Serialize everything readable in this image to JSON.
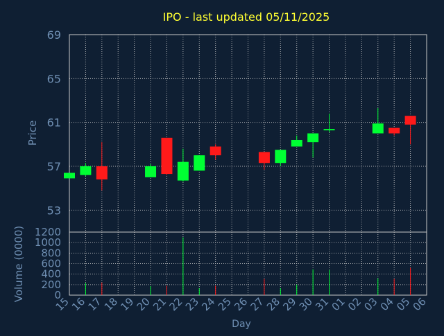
{
  "theme": {
    "background": "#0f1f33",
    "axis_text": "#6f8fb3",
    "title_color": "#ffff33",
    "grid": "#c8c8c8",
    "up_color": "#00ff33",
    "down_color": "#ff1a1a",
    "frame": "#c8c8c8"
  },
  "chart_data": [
    {
      "type": "candlestick",
      "title": "IPO - last updated 05/11/2025",
      "ylabel": "Price",
      "ylim": [
        51,
        69
      ],
      "yticks": [
        53,
        57,
        61,
        65,
        69
      ],
      "grid": true,
      "categories": [
        "15",
        "16",
        "17",
        "18",
        "19",
        "20",
        "21",
        "22",
        "23",
        "24",
        "25",
        "26",
        "27",
        "28",
        "29",
        "30",
        "31",
        "01",
        "02",
        "03",
        "04",
        "05",
        "06"
      ],
      "candles": [
        {
          "x": "15",
          "open": 55.9,
          "close": 56.4,
          "high": 56.4,
          "low": 55.9
        },
        {
          "x": "16",
          "open": 56.2,
          "close": 57.0,
          "high": 57.3,
          "low": 56.1
        },
        {
          "x": "17",
          "open": 57.0,
          "close": 55.8,
          "high": 59.2,
          "low": 54.8
        },
        {
          "x": "20",
          "open": 56.0,
          "close": 57.0,
          "high": 57.2,
          "low": 56.0
        },
        {
          "x": "21",
          "open": 59.6,
          "close": 56.3,
          "high": 59.6,
          "low": 56.2
        },
        {
          "x": "22",
          "open": 55.7,
          "close": 57.4,
          "high": 58.6,
          "low": 55.6
        },
        {
          "x": "23",
          "open": 56.6,
          "close": 58.0,
          "high": 58.0,
          "low": 56.6
        },
        {
          "x": "24",
          "open": 58.8,
          "close": 58.0,
          "high": 59.0,
          "low": 57.6
        },
        {
          "x": "27",
          "open": 58.3,
          "close": 57.3,
          "high": 58.3,
          "low": 56.7
        },
        {
          "x": "28",
          "open": 57.3,
          "close": 58.5,
          "high": 58.5,
          "low": 57.0
        },
        {
          "x": "29",
          "open": 58.8,
          "close": 59.4,
          "high": 59.8,
          "low": 58.8
        },
        {
          "x": "30",
          "open": 59.2,
          "close": 60.0,
          "high": 60.0,
          "low": 57.8
        },
        {
          "x": "31",
          "open": 60.3,
          "close": 60.4,
          "high": 61.8,
          "low": 60.1
        },
        {
          "x": "03",
          "open": 60.0,
          "close": 60.9,
          "high": 62.3,
          "low": 60.0
        },
        {
          "x": "04",
          "open": 60.5,
          "close": 60.0,
          "high": 60.5,
          "low": 59.8
        },
        {
          "x": "05",
          "open": 61.6,
          "close": 60.8,
          "high": 61.6,
          "low": 59.0
        }
      ]
    },
    {
      "type": "bar",
      "ylabel": "Volume (0000)",
      "xlabel": "Day",
      "ylim": [
        0,
        1200
      ],
      "yticks": [
        0,
        200,
        400,
        600,
        800,
        1000,
        1200
      ],
      "grid": true,
      "volumes": [
        {
          "x": "15",
          "value": 0,
          "up": true
        },
        {
          "x": "16",
          "value": 230,
          "up": true
        },
        {
          "x": "17",
          "value": 240,
          "up": false
        },
        {
          "x": "20",
          "value": 170,
          "up": true
        },
        {
          "x": "21",
          "value": 180,
          "up": false
        },
        {
          "x": "22",
          "value": 1100,
          "up": true
        },
        {
          "x": "23",
          "value": 130,
          "up": true
        },
        {
          "x": "24",
          "value": 180,
          "up": false
        },
        {
          "x": "27",
          "value": 310,
          "up": false
        },
        {
          "x": "28",
          "value": 130,
          "up": true
        },
        {
          "x": "29",
          "value": 200,
          "up": true
        },
        {
          "x": "30",
          "value": 490,
          "up": true
        },
        {
          "x": "31",
          "value": 480,
          "up": true
        },
        {
          "x": "03",
          "value": 320,
          "up": true
        },
        {
          "x": "04",
          "value": 310,
          "up": false
        },
        {
          "x": "05",
          "value": 520,
          "up": false
        }
      ]
    }
  ]
}
